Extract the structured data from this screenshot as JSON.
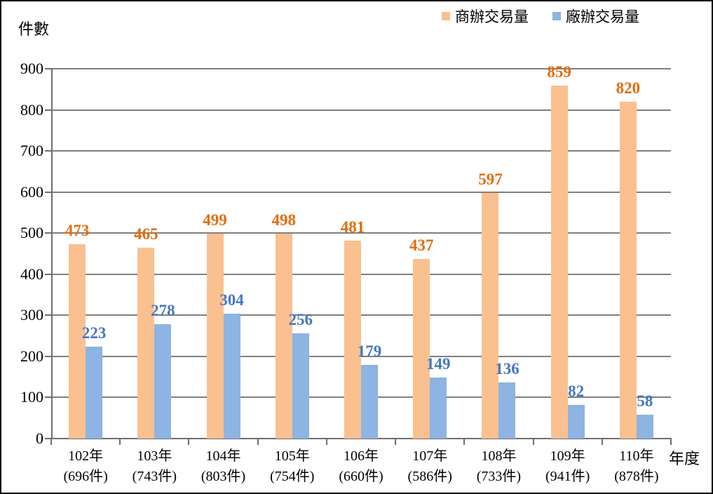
{
  "chart_data": {
    "type": "bar",
    "title": "",
    "ylabel": "件數",
    "xlabel": "年度",
    "ylim": [
      0,
      900
    ],
    "ytick_step": 100,
    "grid": true,
    "legend_position": "top-right",
    "categories": [
      "102年",
      "103年",
      "104年",
      "105年",
      "106年",
      "107年",
      "108年",
      "109年",
      "110年"
    ],
    "category_totals": [
      "(696件)",
      "(743件)",
      "(803件)",
      "(754件)",
      "(660件)",
      "(586件)",
      "(733件)",
      "(941件)",
      "(878件)"
    ],
    "series": [
      {
        "name": "商辦交易量",
        "bar_color": "#FAC090",
        "label_color": "#E36C09",
        "values": [
          473,
          465,
          499,
          498,
          481,
          437,
          597,
          859,
          820
        ]
      },
      {
        "name": "廠辦交易量",
        "bar_color": "#8DB4E2",
        "label_color": "#4777C0",
        "values": [
          223,
          278,
          304,
          256,
          179,
          149,
          136,
          82,
          58
        ]
      }
    ],
    "colors": {
      "gridline": "#808080",
      "axis": "#6E6E6E",
      "border": "#000000"
    }
  }
}
